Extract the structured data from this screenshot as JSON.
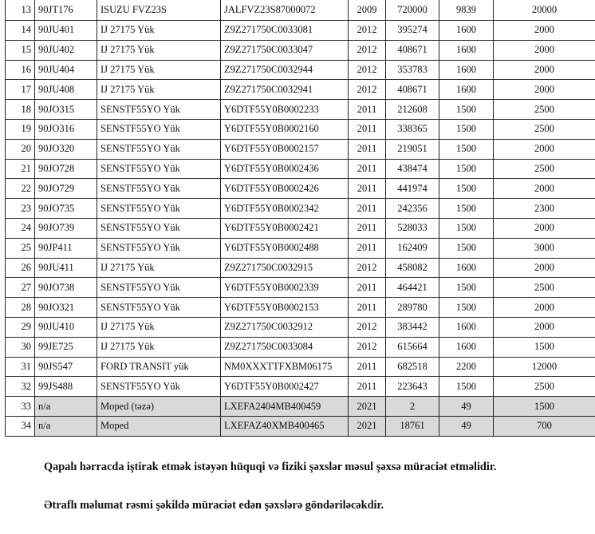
{
  "rows": [
    [
      "13",
      "90JT176",
      "ISUZU FVZ23S",
      "JALFVZ23S87000072",
      "2009",
      "720000",
      "9839",
      "20000"
    ],
    [
      "14",
      "90JU401",
      "IJ 27175 Yük",
      "Z9Z271750C0033081",
      "2012",
      "395274",
      "1600",
      "2000"
    ],
    [
      "15",
      "90JU402",
      "IJ 27175 Yük",
      "Z9Z271750C0033047",
      "2012",
      "408671",
      "1600",
      "2000"
    ],
    [
      "16",
      "90JU404",
      "IJ 27175 Yük",
      "Z9Z271750C0032944",
      "2012",
      "353783",
      "1600",
      "2000"
    ],
    [
      "17",
      "90JU408",
      "IJ 27175 Yük",
      "Z9Z271750C0032941",
      "2012",
      "408671",
      "1600",
      "2000"
    ],
    [
      "18",
      "90JO315",
      "SENSTF55YO Yük",
      "Y6DTF55Y0B0002233",
      "2011",
      "212608",
      "1500",
      "2500"
    ],
    [
      "19",
      "90JO316",
      "SENSTF55YO Yük",
      "Y6DTF55Y0B0002160",
      "2011",
      "338365",
      "1500",
      "2500"
    ],
    [
      "20",
      "90JO320",
      "SENSTF55YO Yük",
      "Y6DTF55Y0B0002157",
      "2011",
      "219051",
      "1500",
      "2000"
    ],
    [
      "21",
      "90JO728",
      "SENSTF55YO Yük",
      "Y6DTF55Y0B0002436",
      "2011",
      "438474",
      "1500",
      "2500"
    ],
    [
      "22",
      "90JO729",
      "SENSTF55YO Yük",
      "Y6DTF55Y0B0002426",
      "2011",
      "441974",
      "1500",
      "2000"
    ],
    [
      "23",
      "90JO735",
      "SENSTF55YO Yük",
      "Y6DTF55Y0B0002342",
      "2011",
      "242356",
      "1500",
      "2300"
    ],
    [
      "24",
      "90JO739",
      "SENSTF55YO Yük",
      "Y6DTF55Y0B0002421",
      "2011",
      "528033",
      "1500",
      "2000"
    ],
    [
      "25",
      "90JP411",
      "SENSTF55YO Yük",
      "Y6DTF55Y0B0002488",
      "2011",
      "162409",
      "1500",
      "3000"
    ],
    [
      "26",
      "90JU411",
      "IJ 27175 Yük",
      "Z9Z271750C0032915",
      "2012",
      "458082",
      "1600",
      "2000"
    ],
    [
      "27",
      "90JO738",
      "SENSTF55YO Yük",
      "Y6DTF55Y0B0002339",
      "2011",
      "464421",
      "1500",
      "2500"
    ],
    [
      "28",
      "90JO321",
      "SENSTF55YO Yük",
      "Y6DTF55Y0B0002153",
      "2011",
      "289780",
      "1500",
      "2000"
    ],
    [
      "29",
      "90JU410",
      "IJ 27175 Yük",
      "Z9Z271750C0032912",
      "2012",
      "383442",
      "1600",
      "2000"
    ],
    [
      "30",
      "99JE725",
      "IJ 27175 Yük",
      "Z9Z271750C0033084",
      "2012",
      "615664",
      "1600",
      "1500"
    ],
    [
      "31",
      "90JS547",
      "FORD TRANSIT yük",
      "NM0XXXTTFXBM06175",
      "2011",
      "682518",
      "2200",
      "12000"
    ],
    [
      "32",
      "99JS488",
      "SENSTF55YO Yük",
      "Y6DTF55Y0B0002427",
      "2011",
      "223643",
      "1500",
      "2500"
    ],
    [
      "33",
      "n/a",
      "Moped (təzə)",
      "LXEFA2404MB400459",
      "2021",
      "2",
      "49",
      "1500"
    ],
    [
      "34",
      "n/a",
      "Moped",
      "LXEFAZ40XMB400465",
      "2021",
      "18761",
      "49",
      "700"
    ]
  ],
  "shaded_rows": [
    "33",
    "34"
  ],
  "shade_color": "#d9d9d9",
  "notes": {
    "line1": "Qapalı hərracda iştirak etmək istəyən hüquqi və fiziki şəxslər məsul şəxsə müraciət etməlidir.",
    "line2": "Ətraflı məlumat rəsmi şəkildə müraciət edən şəxslərə göndəriləcəkdir."
  }
}
